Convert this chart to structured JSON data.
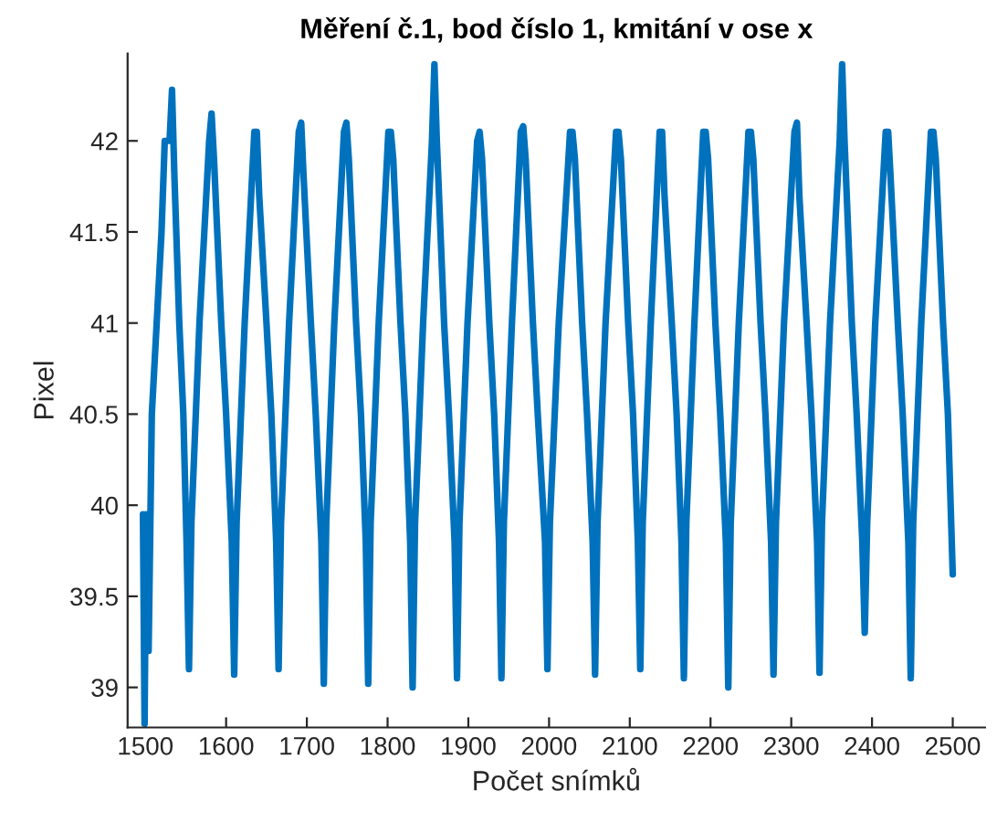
{
  "chart_data": {
    "type": "line",
    "title": "Měření č.1, bod číslo 1, kmitání v ose x",
    "xlabel": "Počet snímků",
    "ylabel": "Pixel",
    "xlim": [
      1478,
      2540
    ],
    "ylim": [
      38.78,
      42.48
    ],
    "xticks": [
      1500,
      1600,
      1700,
      1800,
      1900,
      2000,
      2100,
      2200,
      2300,
      2400,
      2500
    ],
    "yticks": [
      39,
      39.5,
      40,
      40.5,
      41,
      41.5,
      42
    ],
    "grid": false,
    "marker": "none",
    "line_style": "solid",
    "series": [
      {
        "color": "#0072bd",
        "x": [
          1497,
          1499,
          1501,
          1504,
          1508,
          1514,
          1520,
          1524,
          1530,
          1533,
          1536,
          1542,
          1547,
          1551,
          1554,
          1557,
          1567,
          1579,
          1582,
          1585,
          1594,
          1600,
          1607,
          1610,
          1613,
          1623,
          1635,
          1638,
          1641,
          1650,
          1656,
          1662,
          1665,
          1668,
          1678,
          1690,
          1693,
          1696,
          1705,
          1711,
          1718,
          1721,
          1724,
          1734,
          1746,
          1749,
          1752,
          1761,
          1767,
          1773,
          1776,
          1779,
          1789,
          1801,
          1804,
          1807,
          1816,
          1822,
          1828,
          1831,
          1834,
          1844,
          1855,
          1858,
          1861,
          1870,
          1876,
          1883,
          1886,
          1889,
          1899,
          1911,
          1914,
          1917,
          1926,
          1932,
          1938,
          1941,
          1944,
          1954,
          1965,
          1968,
          1971,
          1980,
          1986,
          1995,
          1998,
          2001,
          2012,
          2026,
          2029,
          2032,
          2041,
          2047,
          2054,
          2057,
          2060,
          2070,
          2083,
          2086,
          2089,
          2098,
          2104,
          2110,
          2113,
          2116,
          2126,
          2137,
          2140,
          2143,
          2152,
          2158,
          2164,
          2167,
          2170,
          2180,
          2191,
          2194,
          2197,
          2206,
          2212,
          2219,
          2222,
          2225,
          2235,
          2247,
          2250,
          2253,
          2262,
          2268,
          2275,
          2278,
          2281,
          2291,
          2304,
          2307,
          2310,
          2319,
          2325,
          2332,
          2335,
          2338,
          2348,
          2360,
          2363,
          2366,
          2375,
          2381,
          2388,
          2391,
          2394,
          2404,
          2417,
          2420,
          2423,
          2432,
          2438,
          2445,
          2448,
          2451,
          2461,
          2473,
          2476,
          2479,
          2488,
          2494,
          2500
        ],
        "values": [
          39.95,
          38.8,
          39.95,
          39.2,
          40.5,
          41.0,
          41.5,
          42.0,
          42.0,
          42.28,
          41.8,
          41.0,
          40.5,
          39.8,
          39.1,
          39.9,
          41.0,
          42.0,
          42.15,
          41.9,
          41.0,
          40.5,
          39.8,
          39.07,
          39.9,
          41.0,
          42.05,
          42.05,
          41.7,
          41.0,
          40.5,
          39.8,
          39.1,
          39.9,
          41.0,
          42.05,
          42.1,
          41.8,
          41.0,
          40.5,
          39.8,
          39.02,
          39.9,
          41.0,
          42.05,
          42.1,
          41.9,
          41.0,
          40.5,
          39.8,
          39.02,
          39.9,
          41.0,
          42.05,
          42.05,
          41.9,
          41.0,
          40.5,
          39.8,
          39.0,
          39.9,
          41.0,
          42.0,
          42.42,
          42.0,
          41.0,
          40.5,
          39.8,
          39.05,
          39.9,
          41.0,
          42.0,
          42.05,
          41.9,
          41.0,
          40.5,
          39.8,
          39.05,
          39.9,
          41.0,
          42.05,
          42.08,
          41.9,
          41.0,
          40.5,
          39.8,
          39.1,
          39.9,
          41.0,
          42.05,
          42.05,
          41.9,
          41.0,
          40.5,
          39.8,
          39.07,
          39.9,
          41.0,
          42.05,
          42.05,
          41.9,
          41.0,
          40.5,
          39.8,
          39.1,
          39.9,
          41.0,
          42.05,
          42.05,
          41.7,
          41.0,
          40.5,
          39.8,
          39.05,
          39.9,
          41.0,
          42.05,
          42.05,
          41.9,
          41.0,
          40.5,
          39.8,
          39.0,
          39.9,
          41.0,
          42.05,
          42.05,
          41.9,
          41.0,
          40.5,
          39.8,
          39.07,
          39.9,
          41.0,
          42.05,
          42.1,
          41.7,
          41.0,
          40.5,
          39.8,
          39.08,
          39.9,
          41.0,
          42.0,
          42.42,
          42.0,
          41.0,
          40.5,
          39.8,
          39.3,
          39.9,
          41.0,
          42.05,
          42.05,
          41.8,
          41.0,
          40.5,
          39.8,
          39.05,
          39.9,
          41.0,
          42.05,
          42.05,
          41.9,
          41.0,
          40.5,
          39.62
        ]
      }
    ]
  }
}
